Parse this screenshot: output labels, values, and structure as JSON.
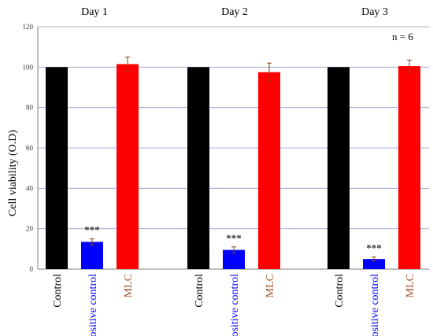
{
  "chart_data": {
    "type": "bar",
    "ylabel": "Cell viability (O.D)",
    "ylim": [
      0,
      120
    ],
    "yticks": [
      0,
      20,
      40,
      60,
      80,
      100,
      120
    ],
    "grid": true,
    "annotation": "n = 6",
    "groups": [
      {
        "name": "Day 1",
        "bars": [
          {
            "category": "Control",
            "value": 100,
            "error": 0,
            "color": "#000000",
            "label_color": "#000000",
            "significance": ""
          },
          {
            "category": "Positive control",
            "value": 13.5,
            "error": 1.5,
            "color": "#0000ff",
            "label_color": "#0000ff",
            "significance": "***"
          },
          {
            "category": "MLC",
            "value": 101.5,
            "error": 3.5,
            "color": "#ff0000",
            "label_color": "#a0522d",
            "significance": ""
          }
        ]
      },
      {
        "name": "Day 2",
        "bars": [
          {
            "category": "Control",
            "value": 100,
            "error": 0,
            "color": "#000000",
            "label_color": "#000000",
            "significance": ""
          },
          {
            "category": "Positive control",
            "value": 9.5,
            "error": 1.5,
            "color": "#0000ff",
            "label_color": "#0000ff",
            "significance": "***"
          },
          {
            "category": "MLC",
            "value": 97.5,
            "error": 4.5,
            "color": "#ff0000",
            "label_color": "#a0522d",
            "significance": ""
          }
        ]
      },
      {
        "name": "Day 3",
        "bars": [
          {
            "category": "Control",
            "value": 100,
            "error": 0,
            "color": "#000000",
            "label_color": "#000000",
            "significance": ""
          },
          {
            "category": "Positive control",
            "value": 5,
            "error": 1,
            "color": "#0000ff",
            "label_color": "#0000ff",
            "significance": "***"
          },
          {
            "category": "MLC",
            "value": 100.5,
            "error": 3,
            "color": "#ff0000",
            "label_color": "#a0522d",
            "significance": ""
          }
        ]
      }
    ]
  }
}
